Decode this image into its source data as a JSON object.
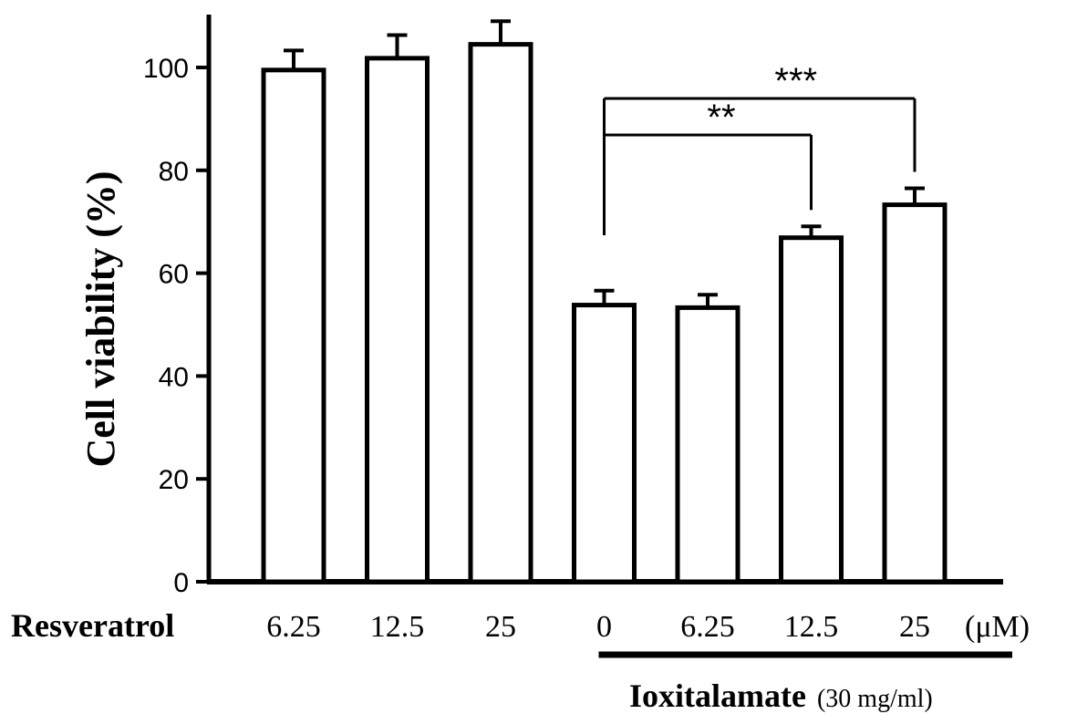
{
  "chart_data": {
    "type": "bar",
    "ylabel": "Cell viability (%)",
    "ylim": [
      0,
      110
    ],
    "yticks": [
      0,
      20,
      40,
      60,
      80,
      100
    ],
    "row_label": "Resveratrol",
    "unit": "(μM)",
    "categories": [
      "6.25",
      "12.5",
      "25",
      "0",
      "6.25",
      "12.5",
      "25"
    ],
    "values": [
      99.5,
      101.8,
      104.5,
      53.8,
      53.3,
      66.9,
      73.3
    ],
    "errors": [
      3.8,
      4.5,
      4.5,
      2.8,
      2.5,
      2.2,
      3.2
    ],
    "group": {
      "label": "Ioxitalamate",
      "note": "(30 mg/ml)",
      "start_index": 3,
      "end_index": 6
    },
    "significance": [
      {
        "from": 3,
        "to": 5,
        "label": "**"
      },
      {
        "from": 3,
        "to": 6,
        "label": "***"
      }
    ],
    "grid": false,
    "legend": "none",
    "bar_fill": "#ffffff",
    "bar_stroke": "#000000"
  }
}
